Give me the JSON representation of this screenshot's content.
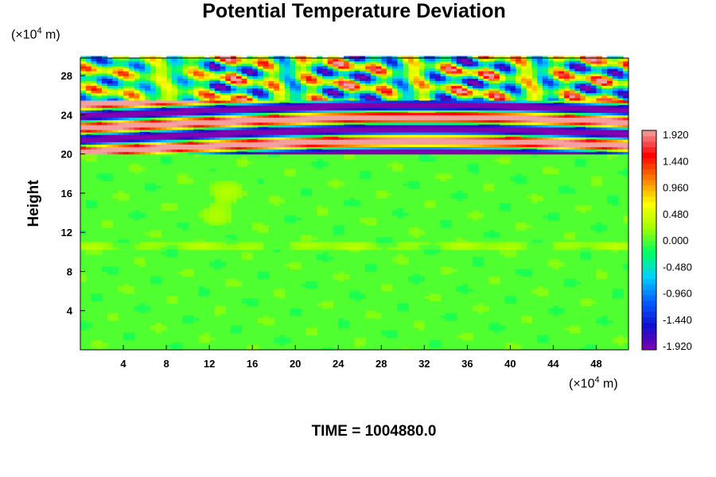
{
  "chart_data": {
    "type": "heatmap",
    "title": "Potential Temperature Deviation",
    "xlabel": "",
    "ylabel": "Height",
    "x_unit": {
      "prefix": "(×10",
      "exp": "4",
      "suffix": " m)"
    },
    "y_unit": {
      "prefix": "(×10",
      "exp": "4",
      "suffix": " m)"
    },
    "x_ticks": [
      "4",
      "8",
      "12",
      "16",
      "20",
      "24",
      "28",
      "32",
      "36",
      "40",
      "44",
      "48"
    ],
    "y_ticks": [
      "4",
      "8",
      "12",
      "16",
      "20",
      "24",
      "28"
    ],
    "xlim": [
      0,
      51
    ],
    "ylim": [
      0,
      29.8
    ],
    "colorbar_labels": [
      "1.920",
      "1.440",
      "0.960",
      "0.480",
      "0.000",
      "-0.480",
      "-0.960",
      "-1.440",
      "-1.920"
    ],
    "colorbar_range": [
      -1.92,
      1.92
    ],
    "field_description_regions": [
      {
        "y_range": [
          0,
          20
        ],
        "value_approx": 0.0
      },
      {
        "y_range": [
          20,
          25.5
        ],
        "pattern": "alternating bands ±1.92"
      },
      {
        "y_range": [
          25.5,
          29.8
        ],
        "pattern": "wave field mixed values"
      }
    ],
    "time_label": "TIME = 1004880.0"
  },
  "colors": {
    "stops": [
      "#8000b0",
      "#1010d0",
      "#0060ff",
      "#00d0ff",
      "#00ff60",
      "#a0ff00",
      "#ffff00",
      "#ff8000",
      "#ff0000",
      "#f4a0a0"
    ]
  }
}
